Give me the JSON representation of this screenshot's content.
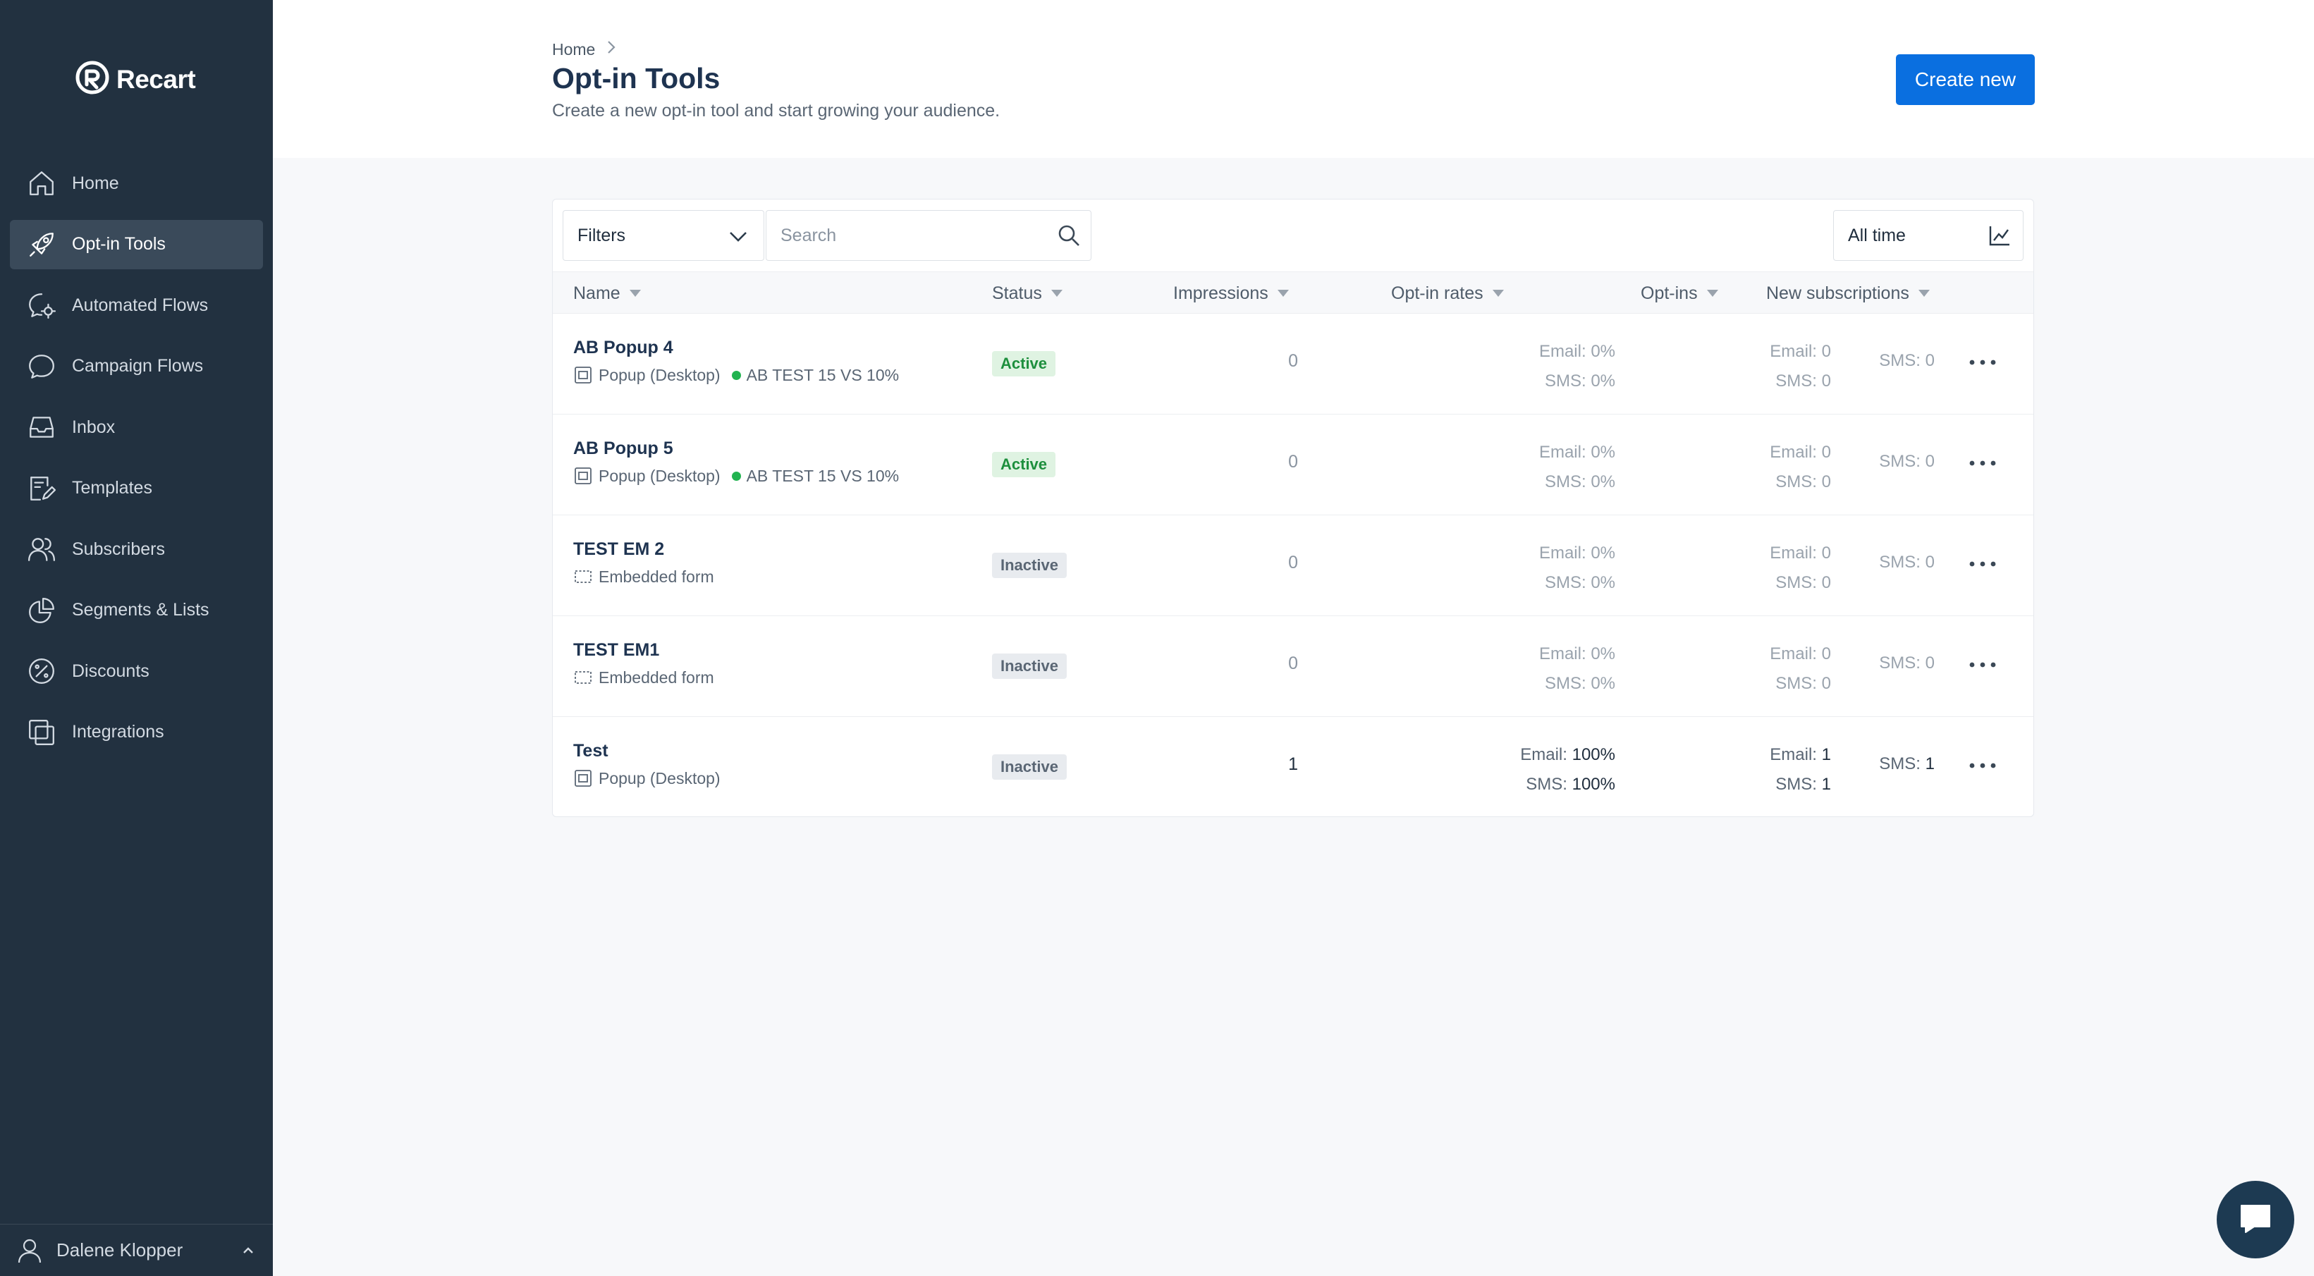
{
  "brand": {
    "name": "Recart"
  },
  "sidebar": {
    "items": [
      {
        "label": "Home",
        "icon": "home-icon"
      },
      {
        "label": "Opt-in Tools",
        "icon": "rocket-icon",
        "active": true
      },
      {
        "label": "Automated Flows",
        "icon": "flow-gear-icon"
      },
      {
        "label": "Campaign Flows",
        "icon": "chat-bubble-icon"
      },
      {
        "label": "Inbox",
        "icon": "inbox-icon"
      },
      {
        "label": "Templates",
        "icon": "template-icon"
      },
      {
        "label": "Subscribers",
        "icon": "users-icon"
      },
      {
        "label": "Segments & Lists",
        "icon": "pie-chart-icon"
      },
      {
        "label": "Discounts",
        "icon": "percent-icon"
      },
      {
        "label": "Integrations",
        "icon": "integrations-icon"
      }
    ],
    "user": {
      "name": "Dalene Klopper"
    }
  },
  "header": {
    "breadcrumb": "Home",
    "title": "Opt-in Tools",
    "subtitle": "Create a new opt-in tool and start growing your audience.",
    "create_label": "Create new"
  },
  "toolbar": {
    "filters_label": "Filters",
    "search_placeholder": "Search",
    "timerange_label": "All time"
  },
  "table": {
    "columns": [
      "Name",
      "Status",
      "Impressions",
      "Opt-in rates",
      "Opt-ins",
      "New subscriptions"
    ],
    "rows": [
      {
        "name": "AB Popup 4",
        "type": "Popup (Desktop)",
        "type_icon": "popup-icon",
        "ab_test": "AB TEST 15 VS 10%",
        "status": "Active",
        "impressions": "0",
        "rate_email_label": "Email:",
        "rate_email": "0%",
        "rate_sms_label": "SMS:",
        "rate_sms": "0%",
        "optins_email_label": "Email:",
        "optins_email": "0",
        "optins_sms_label": "SMS:",
        "optins_sms": "0",
        "new_sms_label": "SMS:",
        "new_sms": "0"
      },
      {
        "name": "AB Popup 5",
        "type": "Popup (Desktop)",
        "type_icon": "popup-icon",
        "ab_test": "AB TEST 15 VS 10%",
        "status": "Active",
        "impressions": "0",
        "rate_email_label": "Email:",
        "rate_email": "0%",
        "rate_sms_label": "SMS:",
        "rate_sms": "0%",
        "optins_email_label": "Email:",
        "optins_email": "0",
        "optins_sms_label": "SMS:",
        "optins_sms": "0",
        "new_sms_label": "SMS:",
        "new_sms": "0"
      },
      {
        "name": "TEST EM 2",
        "type": "Embedded form",
        "type_icon": "embedded-form-icon",
        "status": "Inactive",
        "impressions": "0",
        "rate_email_label": "Email:",
        "rate_email": "0%",
        "rate_sms_label": "SMS:",
        "rate_sms": "0%",
        "optins_email_label": "Email:",
        "optins_email": "0",
        "optins_sms_label": "SMS:",
        "optins_sms": "0",
        "new_sms_label": "SMS:",
        "new_sms": "0"
      },
      {
        "name": "TEST EM1",
        "type": "Embedded form",
        "type_icon": "embedded-form-icon",
        "status": "Inactive",
        "impressions": "0",
        "rate_email_label": "Email:",
        "rate_email": "0%",
        "rate_sms_label": "SMS:",
        "rate_sms": "0%",
        "optins_email_label": "Email:",
        "optins_email": "0",
        "optins_sms_label": "SMS:",
        "optins_sms": "0",
        "new_sms_label": "SMS:",
        "new_sms": "0"
      },
      {
        "name": "Test",
        "type": "Popup (Desktop)",
        "type_icon": "popup-icon",
        "status": "Inactive",
        "impressions": "1",
        "rate_email_label": "Email:",
        "rate_email": "100%",
        "rate_sms_label": "SMS:",
        "rate_sms": "100%",
        "optins_email_label": "Email:",
        "optins_email": "1",
        "optins_sms_label": "SMS:",
        "optins_sms": "1",
        "new_sms_label": "SMS:",
        "new_sms": "1"
      }
    ]
  },
  "colors": {
    "sidebar_bg": "#223140",
    "accent": "#0a6fe0",
    "active_badge": "#1d8f3d",
    "ab_dot": "#22b350"
  }
}
